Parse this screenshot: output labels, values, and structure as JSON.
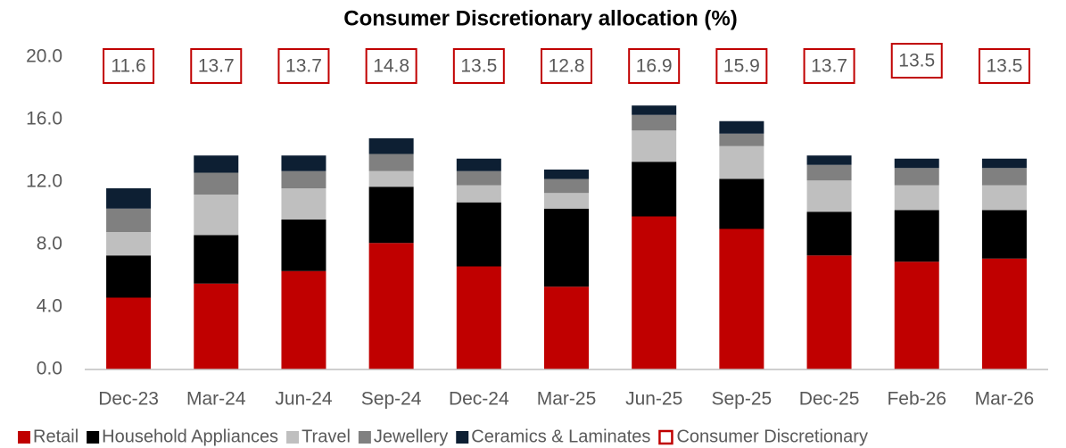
{
  "chart_data": {
    "type": "stacked_bar",
    "title": "Consumer Discretionary allocation (%)",
    "categories": [
      "Dec-23",
      "Mar-24",
      "Jun-24",
      "Sep-24",
      "Dec-24",
      "Mar-25",
      "Jun-25",
      "Sep-25",
      "Dec-25",
      "Feb-26",
      "Mar-26"
    ],
    "series": [
      {
        "name": "Retail",
        "color": "#c00000",
        "values": [
          4.6,
          5.5,
          6.3,
          8.1,
          6.6,
          5.3,
          9.8,
          9.0,
          7.3,
          6.9,
          7.1
        ]
      },
      {
        "name": "Household Appliances",
        "color": "#000000",
        "values": [
          2.7,
          3.1,
          3.3,
          3.6,
          4.1,
          5.0,
          3.5,
          3.2,
          2.8,
          3.3,
          3.1
        ]
      },
      {
        "name": "Travel",
        "color": "#bfbfbf",
        "values": [
          1.5,
          2.6,
          2.0,
          1.0,
          1.1,
          1.0,
          2.0,
          2.1,
          2.0,
          1.6,
          1.6
        ]
      },
      {
        "name": "Jewellery",
        "color": "#808080",
        "values": [
          1.5,
          1.4,
          1.1,
          1.1,
          0.9,
          0.9,
          1.0,
          0.8,
          1.0,
          1.1,
          1.1
        ]
      },
      {
        "name": "Ceramics & Laminates",
        "color": "#0d1f33",
        "values": [
          1.3,
          1.1,
          1.0,
          1.0,
          0.8,
          0.6,
          0.6,
          0.8,
          0.6,
          0.6,
          0.6
        ]
      }
    ],
    "total": {
      "name": "Consumer Discretionary",
      "color": "#c00000",
      "values": [
        11.6,
        13.7,
        13.7,
        14.8,
        13.5,
        12.8,
        16.9,
        15.9,
        13.7,
        13.5,
        13.5
      ]
    },
    "ylim": [
      0,
      20
    ],
    "yticks": [
      {
        "value": 0,
        "label": "0.0"
      },
      {
        "value": 4,
        "label": "4.0"
      },
      {
        "value": 8,
        "label": "8.0"
      },
      {
        "value": 12,
        "label": "12.0"
      },
      {
        "value": 16,
        "label": "16.0"
      },
      {
        "value": 20,
        "label": "20.0"
      }
    ],
    "grid": false,
    "legend": "bottom"
  }
}
